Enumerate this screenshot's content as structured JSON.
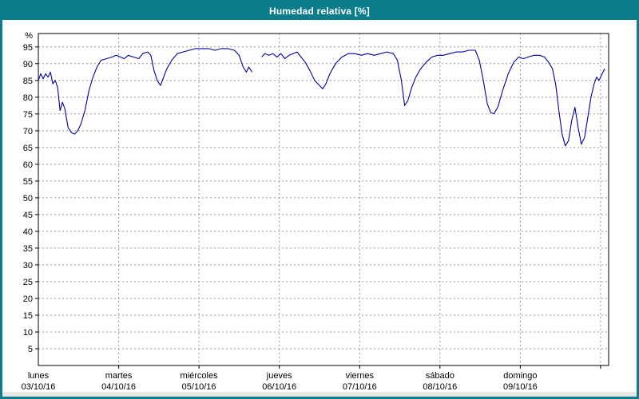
{
  "window": {
    "title": "Humedad relativa [%]"
  },
  "colors": {
    "titlebar": "#0d7d8c",
    "border": "#0d7d8c",
    "plot_bg": "#ffffff",
    "grid": "#999999",
    "axis": "#000000",
    "line": "#0000a0"
  },
  "chart_data": {
    "type": "line",
    "title": "Humedad relativa [%]",
    "xlabel": "",
    "ylabel": "%",
    "ylim": [
      0,
      99
    ],
    "ytick_step": 5,
    "x_unit": "days",
    "x_range_days": [
      0,
      7.1
    ],
    "grid": "dashed",
    "legend": "none",
    "days": [
      {
        "name": "lunes",
        "date": "03/10/16"
      },
      {
        "name": "martes",
        "date": "04/10/16"
      },
      {
        "name": "miércoles",
        "date": "05/10/16"
      },
      {
        "name": "jueves",
        "date": "06/10/16"
      },
      {
        "name": "viernes",
        "date": "07/10/16"
      },
      {
        "name": "sábado",
        "date": "08/10/16"
      },
      {
        "name": "domingo",
        "date": "09/10/16"
      }
    ],
    "series": [
      {
        "name": "Humedad relativa",
        "color": "#0000a0",
        "segments": [
          [
            [
              0.0,
              85
            ],
            [
              0.03,
              87
            ],
            [
              0.06,
              85.5
            ],
            [
              0.09,
              87
            ],
            [
              0.12,
              86
            ],
            [
              0.15,
              87.5
            ],
            [
              0.18,
              84
            ],
            [
              0.21,
              85
            ],
            [
              0.24,
              83
            ],
            [
              0.27,
              76
            ],
            [
              0.3,
              78.5
            ],
            [
              0.33,
              76.5
            ],
            [
              0.37,
              71
            ],
            [
              0.41,
              69.5
            ],
            [
              0.45,
              69
            ],
            [
              0.49,
              70
            ],
            [
              0.53,
              72
            ],
            [
              0.58,
              76
            ],
            [
              0.63,
              82
            ],
            [
              0.68,
              86
            ],
            [
              0.73,
              89
            ],
            [
              0.78,
              91
            ],
            [
              0.85,
              91.5
            ],
            [
              0.92,
              92
            ],
            [
              0.97,
              92.5
            ],
            [
              1.02,
              92
            ],
            [
              1.07,
              91.5
            ],
            [
              1.12,
              92.5
            ],
            [
              1.18,
              92
            ],
            [
              1.25,
              91.5
            ],
            [
              1.3,
              93
            ],
            [
              1.36,
              93.5
            ],
            [
              1.4,
              92.5
            ],
            [
              1.44,
              88
            ],
            [
              1.48,
              85
            ],
            [
              1.52,
              83.5
            ],
            [
              1.56,
              86
            ],
            [
              1.6,
              88.5
            ],
            [
              1.66,
              91
            ],
            [
              1.73,
              93
            ],
            [
              1.8,
              93.5
            ],
            [
              1.88,
              94
            ],
            [
              1.96,
              94.5
            ],
            [
              2.04,
              94.5
            ],
            [
              2.12,
              94.5
            ],
            [
              2.2,
              94
            ],
            [
              2.28,
              94.5
            ],
            [
              2.36,
              94.5
            ],
            [
              2.44,
              94
            ],
            [
              2.5,
              92.5
            ],
            [
              2.55,
              89
            ],
            [
              2.59,
              87.5
            ],
            [
              2.62,
              89
            ],
            [
              2.66,
              87.5
            ]
          ],
          [
            [
              2.78,
              92
            ],
            [
              2.82,
              93
            ],
            [
              2.87,
              92.5
            ],
            [
              2.92,
              93
            ],
            [
              2.97,
              92
            ],
            [
              3.02,
              93
            ],
            [
              3.07,
              91.5
            ],
            [
              3.12,
              92.5
            ],
            [
              3.17,
              93
            ],
            [
              3.22,
              93.5
            ],
            [
              3.27,
              92
            ],
            [
              3.32,
              90.5
            ],
            [
              3.38,
              88
            ],
            [
              3.44,
              85
            ],
            [
              3.5,
              83.5
            ],
            [
              3.54,
              82.5
            ],
            [
              3.58,
              84
            ],
            [
              3.63,
              87
            ],
            [
              3.7,
              90
            ],
            [
              3.78,
              92
            ],
            [
              3.86,
              93
            ],
            [
              3.94,
              93
            ],
            [
              4.02,
              92.5
            ],
            [
              4.1,
              93
            ],
            [
              4.18,
              92.5
            ],
            [
              4.26,
              93
            ],
            [
              4.34,
              93.5
            ],
            [
              4.42,
              93
            ],
            [
              4.47,
              91
            ],
            [
              4.52,
              85
            ],
            [
              4.56,
              77.5
            ],
            [
              4.6,
              79
            ],
            [
              4.65,
              83
            ],
            [
              4.7,
              86
            ],
            [
              4.76,
              88.5
            ],
            [
              4.83,
              90.5
            ],
            [
              4.9,
              92
            ],
            [
              4.97,
              92.5
            ],
            [
              5.04,
              92.5
            ],
            [
              5.12,
              93
            ],
            [
              5.2,
              93.5
            ],
            [
              5.28,
              93.5
            ],
            [
              5.36,
              94
            ],
            [
              5.44,
              94
            ],
            [
              5.49,
              91
            ],
            [
              5.54,
              85
            ],
            [
              5.59,
              78
            ],
            [
              5.63,
              75.5
            ],
            [
              5.67,
              75
            ],
            [
              5.72,
              77
            ],
            [
              5.78,
              82
            ],
            [
              5.85,
              87
            ],
            [
              5.92,
              90.5
            ],
            [
              5.98,
              92
            ],
            [
              6.04,
              91.5
            ],
            [
              6.1,
              92
            ],
            [
              6.17,
              92.5
            ],
            [
              6.24,
              92.5
            ],
            [
              6.3,
              92
            ],
            [
              6.35,
              90.5
            ],
            [
              6.4,
              88.5
            ],
            [
              6.44,
              84
            ],
            [
              6.48,
              76
            ],
            [
              6.52,
              69
            ],
            [
              6.56,
              65.5
            ],
            [
              6.6,
              67
            ],
            [
              6.64,
              73
            ],
            [
              6.68,
              77
            ],
            [
              6.72,
              71
            ],
            [
              6.76,
              66
            ],
            [
              6.8,
              68
            ],
            [
              6.84,
              74
            ],
            [
              6.88,
              80
            ],
            [
              6.92,
              84
            ],
            [
              6.95,
              86
            ],
            [
              6.98,
              85
            ],
            [
              7.01,
              86.5
            ],
            [
              7.05,
              88.5
            ]
          ]
        ]
      }
    ]
  }
}
